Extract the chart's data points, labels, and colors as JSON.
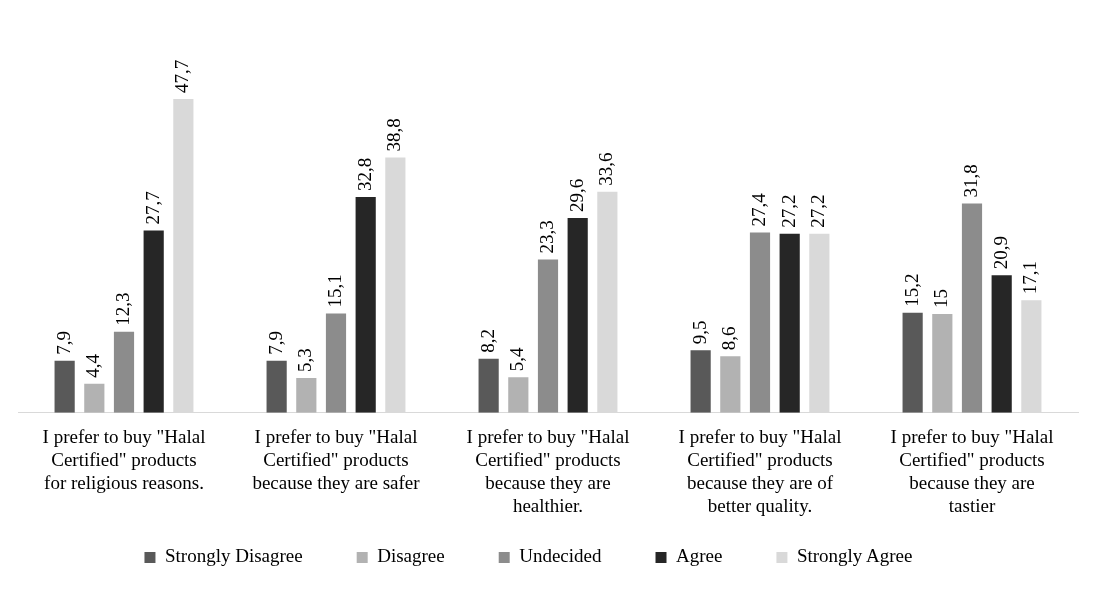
{
  "chart_data": {
    "type": "bar",
    "categories": [
      "I prefer to buy \"Halal Certified\" products for religious reasons.",
      "I prefer to buy \"Halal Certified\" products because they are safer",
      "I prefer to buy \"Halal Certified\" products because they are healthier.",
      "I prefer to buy \"Halal Certified\" products because they are of better quality.",
      "I prefer to buy \"Halal Certified\" products because they are tastier"
    ],
    "series": [
      {
        "name": "Strongly Disagree",
        "color": "#595959",
        "values": [
          7.9,
          7.9,
          8.2,
          9.5,
          15.2
        ],
        "value_labels": [
          "7,9",
          "7,9",
          "8,2",
          "9,5",
          "15,2"
        ]
      },
      {
        "name": "Disagree",
        "color": "#b2b2b2",
        "values": [
          4.4,
          5.3,
          5.4,
          8.6,
          15
        ],
        "value_labels": [
          "4,4",
          "5,3",
          "5,4",
          "8,6",
          "15"
        ]
      },
      {
        "name": "Undecided",
        "color": "#8c8c8c",
        "values": [
          12.3,
          15.1,
          23.3,
          27.4,
          31.8
        ],
        "value_labels": [
          "12,3",
          "15,1",
          "23,3",
          "27,4",
          "31,8"
        ]
      },
      {
        "name": "Agree",
        "color": "#262626",
        "values": [
          27.7,
          32.8,
          29.6,
          27.2,
          20.9
        ],
        "value_labels": [
          "27,7",
          "32,8",
          "29,6",
          "27,2",
          "20,9"
        ]
      },
      {
        "name": "Strongly Agree",
        "color": "#d9d9d9",
        "values": [
          47.7,
          38.8,
          33.6,
          27.2,
          17.1
        ],
        "value_labels": [
          "47,7",
          "38,8",
          "33,6",
          "27,2",
          "17,1"
        ]
      }
    ],
    "legend": "bottom",
    "grid": false
  }
}
